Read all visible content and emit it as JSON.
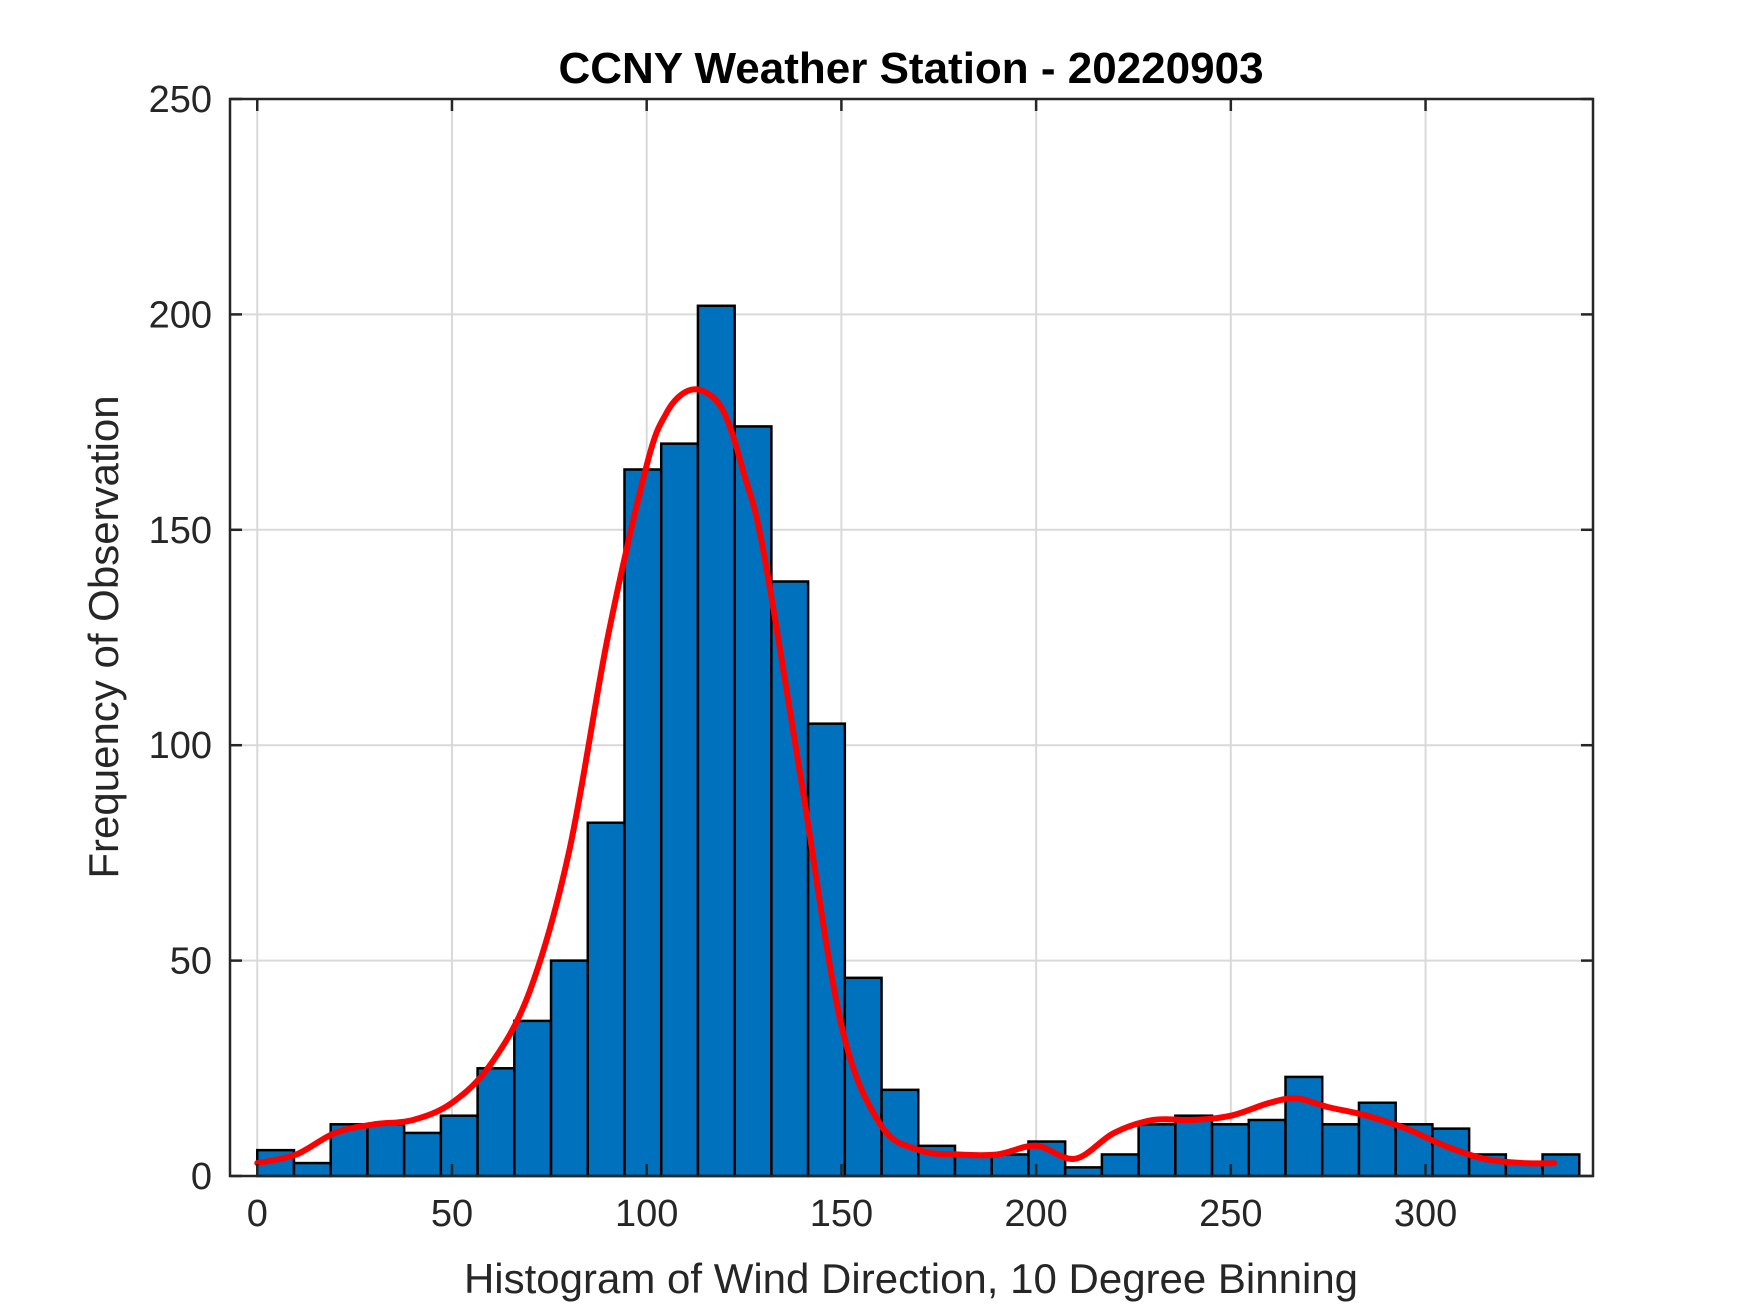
{
  "chart_data": {
    "type": "bar",
    "title": "CCNY Weather Station - 20220903",
    "xlabel": "Histogram of Wind Direction, 10 Degree Binning",
    "ylabel": "Frequency of Observation",
    "xlim": [
      -7,
      343
    ],
    "ylim": [
      0,
      250
    ],
    "xticks": [
      0,
      50,
      100,
      150,
      200,
      250,
      300
    ],
    "yticks": [
      0,
      50,
      100,
      150,
      200,
      250
    ],
    "grid": true,
    "bin_width": 9.43,
    "bin_start": 0,
    "bar_color": "#0072BD",
    "curve_color": "#FF0000",
    "values": [
      6,
      3,
      12,
      12,
      10,
      14,
      25,
      36,
      50,
      82,
      164,
      170,
      202,
      174,
      138,
      105,
      46,
      20,
      7,
      5,
      5,
      8,
      2,
      5,
      12,
      14,
      12,
      13,
      23,
      12,
      17,
      12,
      11,
      5,
      3,
      5
    ],
    "fit_curve": {
      "name": "density fit",
      "x": [
        0,
        10,
        20,
        30,
        40,
        50,
        60,
        70,
        80,
        90,
        100,
        105,
        110,
        115,
        120,
        125,
        130,
        140,
        150,
        160,
        170,
        180,
        190,
        200,
        210,
        220,
        230,
        240,
        250,
        260,
        267,
        275,
        285,
        295,
        305,
        315,
        325,
        333
      ],
      "y": [
        3,
        5,
        10,
        12,
        13,
        17,
        26,
        43,
        75,
        125,
        165,
        177,
        182,
        182,
        177,
        163,
        145,
        90,
        35,
        12,
        6,
        5,
        5,
        7,
        4,
        10,
        13,
        13,
        14,
        17,
        18,
        16,
        14,
        11,
        7,
        4,
        3,
        3
      ]
    }
  }
}
